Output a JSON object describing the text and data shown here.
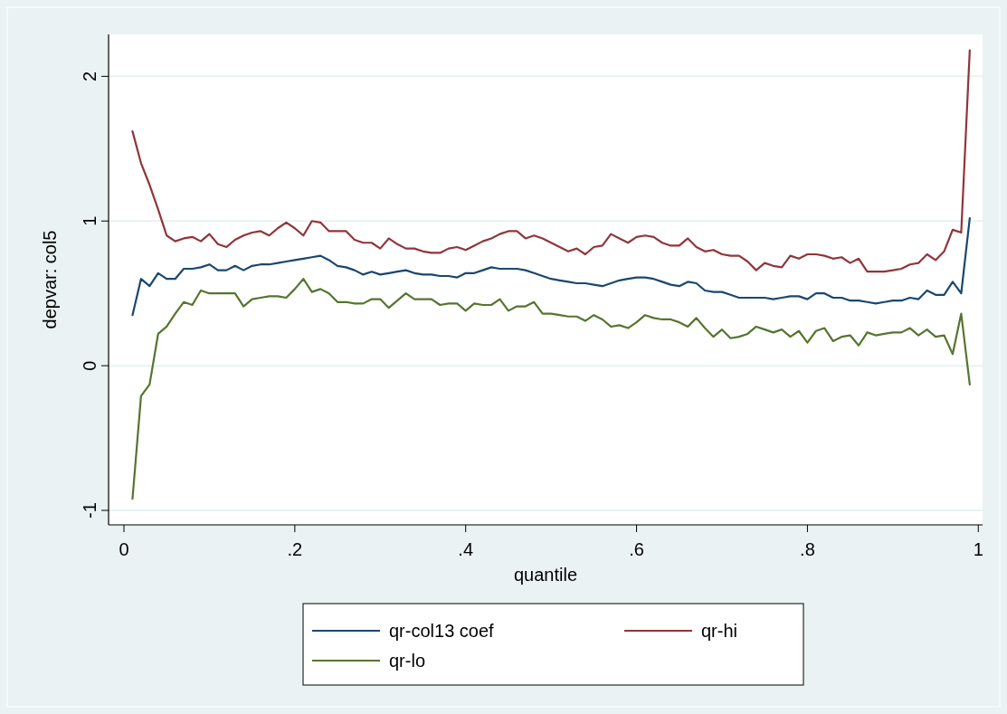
{
  "chart_data": {
    "type": "line",
    "xlabel": "quantile",
    "ylabel": "depvar: col5",
    "x": [
      0.01,
      0.02,
      0.03,
      0.04,
      0.05,
      0.06,
      0.07,
      0.08,
      0.09,
      0.1,
      0.11,
      0.12,
      0.13,
      0.14,
      0.15,
      0.16,
      0.17,
      0.18,
      0.19,
      0.2,
      0.21,
      0.22,
      0.23,
      0.24,
      0.25,
      0.26,
      0.27,
      0.28,
      0.29,
      0.3,
      0.31,
      0.32,
      0.33,
      0.34,
      0.35,
      0.36,
      0.37,
      0.38,
      0.39,
      0.4,
      0.41,
      0.42,
      0.43,
      0.44,
      0.45,
      0.46,
      0.47,
      0.48,
      0.49,
      0.5,
      0.51,
      0.52,
      0.53,
      0.54,
      0.55,
      0.56,
      0.57,
      0.58,
      0.59,
      0.6,
      0.61,
      0.62,
      0.63,
      0.64,
      0.65,
      0.66,
      0.67,
      0.68,
      0.69,
      0.7,
      0.71,
      0.72,
      0.73,
      0.74,
      0.75,
      0.76,
      0.77,
      0.78,
      0.79,
      0.8,
      0.81,
      0.82,
      0.83,
      0.84,
      0.85,
      0.86,
      0.87,
      0.88,
      0.89,
      0.9,
      0.91,
      0.92,
      0.93,
      0.94,
      0.95,
      0.96,
      0.97,
      0.98,
      0.99
    ],
    "series": [
      {
        "name": "qr-col13 coef",
        "color": "#1a476f",
        "values": [
          0.35,
          0.6,
          0.55,
          0.64,
          0.6,
          0.6,
          0.67,
          0.67,
          0.68,
          0.7,
          0.66,
          0.66,
          0.69,
          0.66,
          0.69,
          0.7,
          0.7,
          0.71,
          0.72,
          0.73,
          0.74,
          0.75,
          0.76,
          0.73,
          0.69,
          0.68,
          0.66,
          0.63,
          0.65,
          0.63,
          0.64,
          0.65,
          0.66,
          0.64,
          0.63,
          0.63,
          0.62,
          0.62,
          0.61,
          0.64,
          0.64,
          0.66,
          0.68,
          0.67,
          0.67,
          0.67,
          0.66,
          0.64,
          0.62,
          0.6,
          0.59,
          0.58,
          0.57,
          0.57,
          0.56,
          0.55,
          0.57,
          0.59,
          0.6,
          0.61,
          0.61,
          0.6,
          0.58,
          0.56,
          0.55,
          0.58,
          0.57,
          0.52,
          0.51,
          0.51,
          0.49,
          0.47,
          0.47,
          0.47,
          0.47,
          0.46,
          0.47,
          0.48,
          0.48,
          0.46,
          0.5,
          0.5,
          0.47,
          0.47,
          0.45,
          0.45,
          0.44,
          0.43,
          0.44,
          0.45,
          0.45,
          0.47,
          0.46,
          0.52,
          0.49,
          0.49,
          0.58,
          0.5,
          1.02
        ]
      },
      {
        "name": "qr-hi",
        "color": "#90353b",
        "values": [
          1.62,
          1.4,
          1.25,
          1.08,
          0.9,
          0.86,
          0.88,
          0.89,
          0.86,
          0.91,
          0.84,
          0.82,
          0.87,
          0.9,
          0.92,
          0.93,
          0.9,
          0.95,
          0.99,
          0.95,
          0.9,
          1.0,
          0.99,
          0.93,
          0.93,
          0.93,
          0.87,
          0.85,
          0.85,
          0.81,
          0.88,
          0.84,
          0.81,
          0.81,
          0.79,
          0.78,
          0.78,
          0.81,
          0.82,
          0.8,
          0.83,
          0.86,
          0.88,
          0.91,
          0.93,
          0.93,
          0.88,
          0.9,
          0.88,
          0.85,
          0.82,
          0.79,
          0.81,
          0.77,
          0.82,
          0.83,
          0.91,
          0.88,
          0.85,
          0.89,
          0.9,
          0.89,
          0.85,
          0.83,
          0.83,
          0.88,
          0.82,
          0.79,
          0.8,
          0.77,
          0.76,
          0.76,
          0.72,
          0.66,
          0.71,
          0.69,
          0.68,
          0.76,
          0.74,
          0.77,
          0.77,
          0.76,
          0.74,
          0.75,
          0.71,
          0.74,
          0.65,
          0.65,
          0.65,
          0.66,
          0.67,
          0.7,
          0.71,
          0.77,
          0.73,
          0.79,
          0.94,
          0.92,
          2.18
        ]
      },
      {
        "name": "qr-lo",
        "color": "#55752f",
        "values": [
          -0.92,
          -0.21,
          -0.13,
          0.22,
          0.27,
          0.36,
          0.44,
          0.42,
          0.52,
          0.5,
          0.5,
          0.5,
          0.5,
          0.41,
          0.46,
          0.47,
          0.48,
          0.48,
          0.47,
          0.53,
          0.6,
          0.51,
          0.53,
          0.5,
          0.44,
          0.44,
          0.43,
          0.43,
          0.46,
          0.46,
          0.4,
          0.45,
          0.5,
          0.46,
          0.46,
          0.46,
          0.42,
          0.43,
          0.43,
          0.38,
          0.43,
          0.42,
          0.42,
          0.46,
          0.38,
          0.41,
          0.41,
          0.44,
          0.36,
          0.36,
          0.35,
          0.34,
          0.34,
          0.31,
          0.35,
          0.32,
          0.27,
          0.28,
          0.26,
          0.3,
          0.35,
          0.33,
          0.32,
          0.32,
          0.3,
          0.27,
          0.33,
          0.26,
          0.2,
          0.25,
          0.19,
          0.2,
          0.22,
          0.27,
          0.25,
          0.23,
          0.25,
          0.2,
          0.24,
          0.16,
          0.24,
          0.26,
          0.17,
          0.2,
          0.21,
          0.14,
          0.23,
          0.21,
          0.22,
          0.23,
          0.23,
          0.26,
          0.21,
          0.25,
          0.2,
          0.21,
          0.08,
          0.36,
          -0.13
        ]
      }
    ],
    "xlim": [
      -0.018,
      1.005
    ],
    "ylim": [
      -1.1,
      2.29
    ],
    "xticks": [
      0,
      {
        "value": 0.2,
        "label": ".2"
      },
      {
        "value": 0.4,
        "label": ".4"
      },
      {
        "value": 0.6,
        "label": ".6"
      },
      {
        "value": 0.8,
        "label": ".8"
      },
      1
    ],
    "yticks": [
      -1,
      0,
      1,
      2
    ],
    "grid": "y",
    "legend": "bottom",
    "line_style": "solid",
    "marker": "none"
  }
}
